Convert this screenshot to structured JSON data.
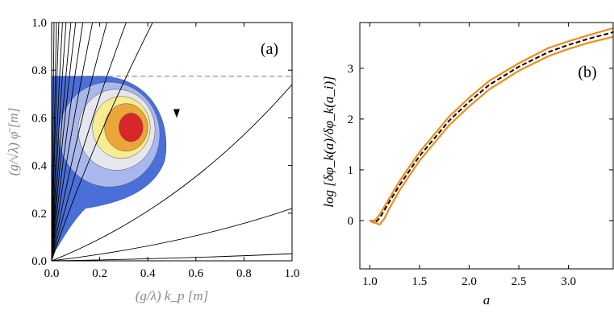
{
  "chart_data": [
    {
      "panel": "(a)",
      "type": "contour",
      "xlim": [
        0,
        1
      ],
      "ylim": [
        0,
        1
      ],
      "x_ticks": [
        "0.0",
        "0.2",
        "0.4",
        "0.6",
        "0.8",
        "1.0"
      ],
      "y_ticks": [
        "0.0",
        "0.2",
        "0.4",
        "0.6",
        "0.8",
        "1.0"
      ],
      "xlabel": "(g/λ) k_p [m]",
      "ylabel": "(g/√λ) φ̄ [m]",
      "dashed_level_y": 0.775,
      "dashed_color": "#8c8cd6",
      "contour_levels": [
        {
          "name": "blue",
          "color": "#4a6fd8",
          "cx": 0.16,
          "cy": 0.48,
          "rx": 0.32,
          "ry": 0.3
        },
        {
          "name": "light-blue",
          "color": "#a9b8ec",
          "cx": 0.24,
          "cy": 0.53,
          "rx": 0.21,
          "ry": 0.22
        },
        {
          "name": "pale-gray",
          "color": "#e6e6ee",
          "cx": 0.27,
          "cy": 0.55,
          "rx": 0.16,
          "ry": 0.17
        },
        {
          "name": "light-yellow",
          "color": "#f8ec92",
          "cx": 0.29,
          "cy": 0.56,
          "rx": 0.12,
          "ry": 0.13
        },
        {
          "name": "orange",
          "color": "#eba63a",
          "cx": 0.31,
          "cy": 0.56,
          "rx": 0.09,
          "ry": 0.1
        },
        {
          "name": "red",
          "color": "#d8262a",
          "cx": 0.33,
          "cy": 0.56,
          "rx": 0.05,
          "ry": 0.06
        }
      ],
      "trajectories_x_at_top": [
        0.01,
        0.02,
        0.03,
        0.045,
        0.06,
        0.08,
        0.1,
        0.13,
        0.17,
        0.23,
        0.31,
        0.42
      ],
      "trajectories_y_at_right": [
        0.74,
        0.22,
        0.03
      ],
      "arrow": {
        "x": 0.52,
        "y": 0.62
      }
    },
    {
      "panel": "(b)",
      "type": "line",
      "xlim": [
        0.9,
        3.45
      ],
      "ylim": [
        -0.95,
        3.9
      ],
      "x_ticks": [
        "1.0",
        "1.5",
        "2.0",
        "2.5",
        "3.0"
      ],
      "y_ticks": [
        "0",
        "1",
        "2",
        "3"
      ],
      "xlabel": "a",
      "ylabel": "log [δφ_k(a)/δφ_k(a_i)]",
      "series": [
        {
          "name": "upper",
          "color": "#f08c1a",
          "style": "solid",
          "x": [
            1.0,
            1.05,
            1.1,
            1.2,
            1.3,
            1.5,
            1.8,
            2.0,
            2.2,
            2.5,
            2.8,
            3.0,
            3.2,
            3.45
          ],
          "y": [
            0.0,
            0.0,
            0.12,
            0.45,
            0.78,
            1.35,
            2.05,
            2.42,
            2.75,
            3.1,
            3.4,
            3.53,
            3.65,
            3.79
          ]
        },
        {
          "name": "middle",
          "color": "#000000",
          "style": "dashed",
          "x": [
            1.0,
            1.05,
            1.1,
            1.2,
            1.3,
            1.5,
            1.8,
            2.0,
            2.2,
            2.5,
            2.8,
            3.0,
            3.2,
            3.45
          ],
          "y": [
            0.0,
            -0.05,
            0.05,
            0.38,
            0.7,
            1.27,
            1.97,
            2.34,
            2.67,
            3.03,
            3.32,
            3.46,
            3.58,
            3.71
          ]
        },
        {
          "name": "lower",
          "color": "#f08c1a",
          "style": "solid",
          "x": [
            1.0,
            1.05,
            1.1,
            1.15,
            1.2,
            1.3,
            1.5,
            1.8,
            2.0,
            2.2,
            2.5,
            2.8,
            3.0,
            3.2,
            3.45
          ],
          "y": [
            0.0,
            -0.04,
            -0.08,
            0.05,
            0.25,
            0.6,
            1.18,
            1.88,
            2.25,
            2.58,
            2.95,
            3.24,
            3.38,
            3.5,
            3.62
          ]
        }
      ]
    }
  ]
}
